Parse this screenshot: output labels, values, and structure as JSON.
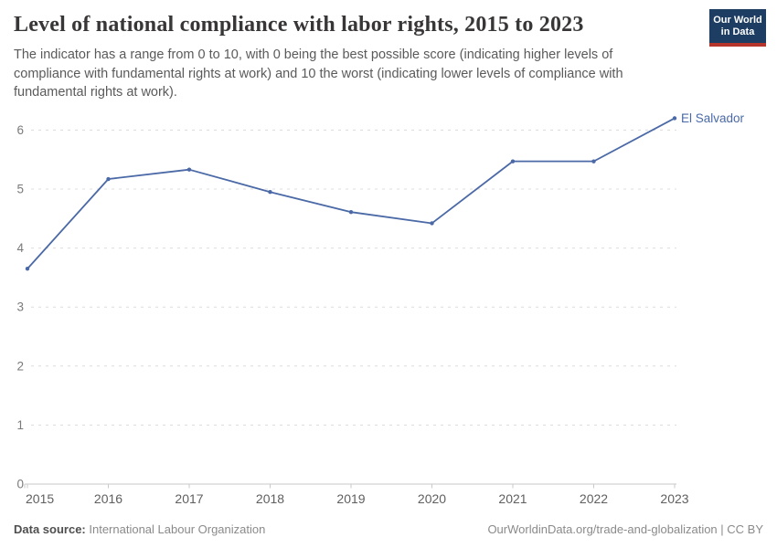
{
  "header": {
    "title": "Level of national compliance with labor rights, 2015 to 2023",
    "subtitle": "The indicator has a range from 0 to 10, with 0 being the best possible score (indicating higher levels of compliance with fundamental rights at work) and 10 the worst (indicating lower levels of compliance with fundamental rights at work).",
    "logo": {
      "line1": "Our World",
      "line2": "in Data",
      "bg_color": "#1d3d63",
      "accent_color": "#b5342c",
      "text_color": "#ffffff"
    }
  },
  "chart_data": {
    "type": "line",
    "title": "Level of national compliance with labor rights, 2015 to 2023",
    "xlabel": "",
    "ylabel": "",
    "x": [
      2015,
      2016,
      2017,
      2018,
      2019,
      2020,
      2021,
      2022,
      2023
    ],
    "series": [
      {
        "name": "El Salvador",
        "color": "#4a69a6",
        "values": [
          3.65,
          5.17,
          5.33,
          4.95,
          4.61,
          4.42,
          5.47,
          5.47,
          6.2
        ]
      }
    ],
    "yticks": [
      0,
      1,
      2,
      3,
      4,
      5,
      6
    ],
    "ylim": [
      0,
      6.3
    ],
    "grid": "horizontal-dashed",
    "legend": "inline-end-label",
    "colors": {
      "gridline": "#dcdcdc",
      "axis": "#c9c9c9",
      "y_tick_label": "#7a7a7a",
      "x_tick_label": "#5f5f5f"
    }
  },
  "footer": {
    "source_label": "Data source:",
    "source_value": "International Labour Organization",
    "link_text": "OurWorldinData.org/trade-and-globalization | CC BY"
  }
}
